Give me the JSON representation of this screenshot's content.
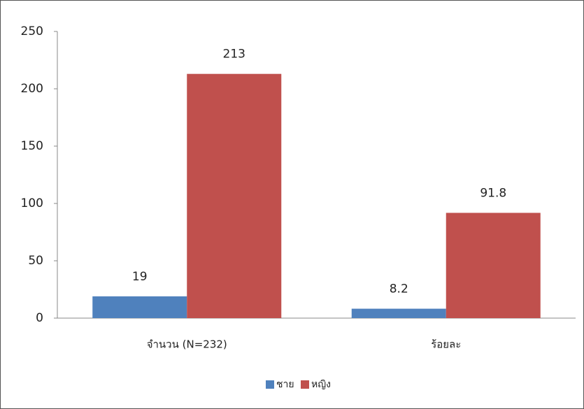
{
  "chart_data": {
    "type": "bar",
    "categories": [
      "จำนวน (N=232)",
      "ร้อยละ"
    ],
    "series": [
      {
        "name": "ชาย",
        "color": "#4f81bd",
        "values": [
          19,
          8.2
        ]
      },
      {
        "name": "หญิง",
        "color": "#c0504d",
        "values": [
          213,
          91.8
        ]
      }
    ],
    "ylim": [
      0,
      250
    ],
    "yticks": [
      0,
      50,
      100,
      150,
      200,
      250
    ],
    "legend": "bottom"
  }
}
